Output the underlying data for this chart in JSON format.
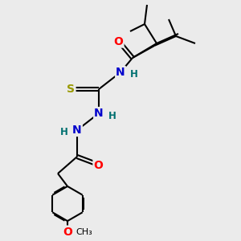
{
  "bg_color": "#ebebeb",
  "bond_color": "#000000",
  "bond_width": 1.5,
  "atom_colors": {
    "O": "#ff0000",
    "N": "#0000cc",
    "S": "#999900",
    "H": "#007070",
    "C": "#000000"
  },
  "font_size_atom": 10,
  "font_size_H": 8.5,
  "font_size_small": 8
}
